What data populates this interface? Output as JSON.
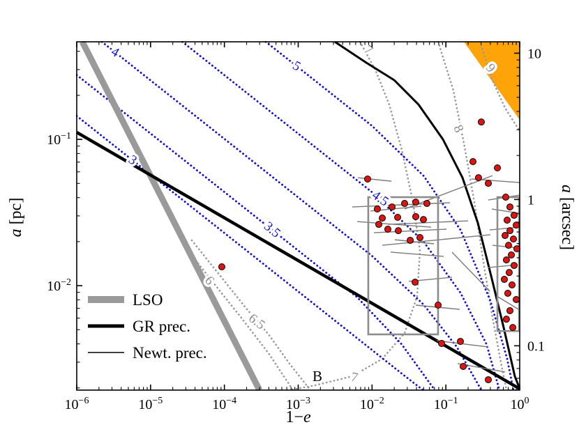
{
  "chart_data": {
    "type": "scatter",
    "xlabel_parts": {
      "prefix": "1−",
      "italic_var": "e"
    },
    "ylabel_left_parts": {
      "italic_var": "a",
      "rest": "[pc]"
    },
    "ylabel_right_parts": {
      "italic_var": "a",
      "rest": "[arcsec]"
    },
    "axes": {
      "x_log_min": -6,
      "x_log_max": 0,
      "y_log_min": -2.714,
      "y_log_max": -0.333,
      "arcsec_scale_pc": 0.0388,
      "x_major_ticks": [
        {
          "log": -6,
          "exp": "−6"
        },
        {
          "log": -5,
          "exp": "−5"
        },
        {
          "log": -4,
          "exp": "−4"
        },
        {
          "log": -3,
          "exp": "−3"
        },
        {
          "log": -2,
          "exp": "−2"
        },
        {
          "log": -1,
          "exp": "−1"
        },
        {
          "log": 0,
          "exp": "0"
        }
      ],
      "y_major_ticks": [
        {
          "log": -1,
          "exp": "−1"
        },
        {
          "log": -2,
          "exp": "−2"
        }
      ],
      "right_ticks": [
        {
          "label": "10",
          "log": -0.411
        },
        {
          "label": "1",
          "log": -1.411
        },
        {
          "label": "0.1",
          "log": -2.411
        }
      ]
    },
    "colors": {
      "blue": "#1212cf",
      "gray_contour": "#999999",
      "gray_label": "#8a8a8a",
      "lso": "#9a9a9a",
      "gr": "#000000",
      "track": "#7a7a7a",
      "point_fill": "#dd1510",
      "point_edge": "#000000",
      "box": "#8c8c8c",
      "orange": "#ffa408"
    },
    "contours_gr": [
      {
        "labels": [
          {
            "text": "3",
            "u": -5.244,
            "v": -1.143,
            "rot": 35
          }
        ],
        "points": [
          [
            -6,
            -0.84
          ],
          [
            -5,
            -1.24
          ],
          [
            -4,
            -1.64
          ],
          [
            -3,
            -2.04
          ],
          [
            -2.2,
            -2.36
          ],
          [
            -1.6,
            -2.6
          ],
          [
            -1.31,
            -2.714
          ]
        ]
      },
      {
        "labels": [
          {
            "text": "3.5",
            "u": -3.354,
            "v": -1.619,
            "rot": 40
          }
        ],
        "points": [
          [
            -6,
            -0.56
          ],
          [
            -5,
            -0.96
          ],
          [
            -4,
            -1.36
          ],
          [
            -3,
            -1.76
          ],
          [
            -2.2,
            -2.08
          ],
          [
            -1.6,
            -2.4
          ],
          [
            -1.15,
            -2.714
          ]
        ]
      },
      {
        "labels": [
          {
            "text": "4",
            "u": -5.48,
            "v": -0.405,
            "rot": 30
          }
        ],
        "points": [
          [
            -5.66,
            -0.333
          ],
          [
            -5,
            -0.597
          ],
          [
            -4,
            -0.997
          ],
          [
            -3,
            -1.397
          ],
          [
            -2,
            -1.797
          ],
          [
            -1.3,
            -2.13
          ],
          [
            -0.85,
            -2.42
          ],
          [
            -0.52,
            -2.714
          ]
        ]
      },
      {
        "labels": [
          {
            "text": "4.5",
            "u": -1.89,
            "v": -1.405,
            "rot": 35
          }
        ],
        "points": [
          [
            -4.57,
            -0.333
          ],
          [
            -4,
            -0.561
          ],
          [
            -3,
            -0.961
          ],
          [
            -2,
            -1.361
          ],
          [
            -1.3,
            -1.7
          ],
          [
            -0.8,
            -2.05
          ],
          [
            -0.45,
            -2.4
          ],
          [
            -0.275,
            -2.714
          ]
        ]
      },
      {
        "labels": [
          {
            "text": "5",
            "u": -3.023,
            "v": -0.5,
            "rot": 30
          }
        ],
        "points": [
          [
            -3.44,
            -0.333
          ],
          [
            -3,
            -0.508
          ],
          [
            -2,
            -0.908
          ],
          [
            -1.3,
            -1.25
          ],
          [
            -0.8,
            -1.62
          ],
          [
            -0.4,
            -2.1
          ],
          [
            -0.17,
            -2.5
          ],
          [
            -0.085,
            -2.714
          ]
        ]
      }
    ],
    "contours_newt": [
      {
        "labels": [
          {
            "text": "6",
            "u": -4.205,
            "v": -1.966,
            "rot": 48
          }
        ],
        "points": [
          [
            -4.847,
            -1.419
          ],
          [
            -4.488,
            -1.762
          ],
          [
            -4.157,
            -1.976
          ],
          [
            -3.78,
            -2.214
          ],
          [
            -3.402,
            -2.462
          ],
          [
            -3.071,
            -2.714
          ]
        ]
      },
      {
        "labels": [
          {
            "text": "6.5",
            "u": -3.562,
            "v": -2.247,
            "rot": 38
          }
        ],
        "points": [
          [
            -4.441,
            -1.69
          ],
          [
            -3.685,
            -2.167
          ],
          [
            -3.402,
            -2.333
          ],
          [
            -3.118,
            -2.533
          ],
          [
            -2.835,
            -2.714
          ]
        ]
      },
      {
        "labels": [
          {
            "text": "7",
            "u": -2.05,
            "v": -0.39,
            "rot": 38
          },
          {
            "text": "7",
            "u": -2.239,
            "v": -2.628,
            "rot": 12
          }
        ],
        "points": [
          [
            -2.164,
            -0.333
          ],
          [
            -1.956,
            -0.524
          ],
          [
            -1.767,
            -0.762
          ],
          [
            -1.597,
            -1.071
          ],
          [
            -1.446,
            -1.429
          ],
          [
            -1.351,
            -1.762
          ],
          [
            -1.389,
            -2.071
          ],
          [
            -1.559,
            -2.324
          ],
          [
            -1.861,
            -2.5
          ],
          [
            -2.268,
            -2.619
          ],
          [
            -2.769,
            -2.681
          ],
          [
            -3.118,
            -2.714
          ]
        ]
      },
      {
        "labels": [
          {
            "text": "8",
            "u": -0.832,
            "v": -0.928,
            "rot": 65
          }
        ],
        "points": [
          [
            -1.105,
            -0.333
          ],
          [
            -0.898,
            -0.667
          ],
          [
            -0.747,
            -1.048
          ],
          [
            -0.614,
            -1.429
          ],
          [
            -0.501,
            -1.81
          ],
          [
            -0.378,
            -2.19
          ],
          [
            -0.255,
            -2.524
          ],
          [
            -0.18,
            -2.714
          ]
        ]
      },
      {
        "labels": [
          {
            "text": "9",
            "u": -0.397,
            "v": -0.514,
            "rot": 50
          }
        ],
        "points": [
          [
            -0.539,
            -0.333
          ],
          [
            -0.369,
            -0.595
          ],
          [
            -0.198,
            -0.786
          ],
          [
            -0.047,
            -0.905
          ],
          [
            0,
            -0.943
          ]
        ]
      }
    ],
    "lso_line": {
      "label": "LSO",
      "points": [
        [
          -5.924,
          -0.333
        ],
        [
          -3.524,
          -2.714
        ]
      ]
    },
    "gr_line": {
      "label": "GR prec.",
      "points": [
        [
          -6,
          -0.952
        ],
        [
          0,
          -2.705
        ]
      ]
    },
    "black_curve": {
      "points": [
        [
          -2.504,
          -0.333
        ],
        [
          -2.078,
          -0.476
        ],
        [
          -1.7,
          -0.595
        ],
        [
          -1.37,
          -0.762
        ],
        [
          -1.039,
          -1.0
        ],
        [
          -0.775,
          -1.262
        ],
        [
          -0.567,
          -1.571
        ],
        [
          -0.378,
          -1.952
        ],
        [
          -0.217,
          -2.286
        ],
        [
          -0.066,
          -2.619
        ],
        [
          0,
          -2.705
        ]
      ]
    },
    "orange_region": {
      "points": [
        [
          -0.756,
          -0.333
        ],
        [
          0,
          -0.333
        ],
        [
          0,
          -0.867
        ]
      ]
    },
    "boxes": [
      {
        "u0": -2.051,
        "v0": -1.395,
        "u1": -1.106,
        "v1": -2.333
      },
      {
        "u0": -0.302,
        "v0": -1.395,
        "u1": -0.009,
        "v1": -2.31
      }
    ],
    "stars": [
      [
        -4.035,
        -1.871
      ],
      [
        -2.06,
        -1.271
      ],
      [
        -1.928,
        -1.476
      ],
      [
        -1.861,
        -1.538
      ],
      [
        -1.786,
        -1.614
      ],
      [
        -1.909,
        -1.581
      ],
      [
        -1.729,
        -1.462
      ],
      [
        -1.644,
        -1.624
      ],
      [
        -1.559,
        -1.438
      ],
      [
        -1.483,
        -1.69
      ],
      [
        -1.408,
        -1.429
      ],
      [
        -1.351,
        -1.671
      ],
      [
        -1.304,
        -1.548
      ],
      [
        -1.257,
        -1.438
      ],
      [
        -1.408,
        -1.528
      ],
      [
        -1.653,
        -1.533
      ],
      [
        -1.417,
        -1.976
      ],
      [
        -1.105,
        -2.133
      ],
      [
        -1.058,
        -2.395
      ],
      [
        -0.765,
        -2.552
      ],
      [
        -0.52,
        -0.881
      ],
      [
        -0.633,
        -1.152
      ],
      [
        -0.425,
        -1.3
      ],
      [
        -0.558,
        -1.262
      ],
      [
        -0.302,
        -1.195
      ],
      [
        -0.189,
        -1.395
      ],
      [
        -0.132,
        -1.462
      ],
      [
        -0.076,
        -1.519
      ],
      [
        -0.17,
        -1.552
      ],
      [
        -0.047,
        -1.586
      ],
      [
        -0.132,
        -1.624
      ],
      [
        -0.198,
        -1.657
      ],
      [
        -0.085,
        -1.681
      ],
      [
        -0.151,
        -1.724
      ],
      [
        -0.038,
        -1.748
      ],
      [
        -0.113,
        -1.79
      ],
      [
        -0.18,
        -1.824
      ],
      [
        -0.076,
        -1.862
      ],
      [
        -0.142,
        -1.91
      ],
      [
        -0.208,
        -1.957
      ],
      [
        -0.104,
        -1.995
      ],
      [
        -0.161,
        -2.052
      ],
      [
        -0.047,
        -2.095
      ],
      [
        -0.132,
        -2.171
      ],
      [
        -0.18,
        -2.229
      ],
      [
        -0.094,
        -2.286
      ],
      [
        -0.425,
        -2.643
      ],
      [
        -0.803,
        -2.381
      ]
    ],
    "tracks": [
      [
        [
          -2.268,
          -1.462
        ],
        [
          -0.945,
          -1.433
        ]
      ],
      [
        [
          -2.202,
          -1.562
        ],
        [
          -1.2,
          -1.6
        ]
      ],
      [
        [
          -2.022,
          -1.49
        ],
        [
          -1.332,
          -1.457
        ]
      ],
      [
        [
          -1.975,
          -1.638
        ],
        [
          -0.992,
          -1.614
        ]
      ],
      [
        [
          -1.861,
          -1.724
        ],
        [
          -0.397,
          -1.652
        ]
      ],
      [
        [
          -1.786,
          -1.581
        ],
        [
          -0.699,
          -1.557
        ]
      ],
      [
        [
          -1.691,
          -1.686
        ],
        [
          -1.162,
          -1.714
        ]
      ],
      [
        [
          -1.559,
          -1.476
        ],
        [
          -0.369,
          -1.248
        ]
      ],
      [
        [
          -1.748,
          -1.771
        ],
        [
          -1.03,
          -1.8
        ]
      ],
      [
        [
          -1.502,
          -1.971
        ],
        [
          -0.917,
          -1.943
        ]
      ],
      [
        [
          -1.408,
          -2.133
        ],
        [
          -0.813,
          -2.162
        ]
      ],
      [
        [
          -1.124,
          -2.376
        ],
        [
          -0.425,
          -2.419
        ]
      ],
      [
        [
          -0.841,
          -2.533
        ],
        [
          -0.198,
          -2.59
        ]
      ],
      [
        [
          -0.652,
          -1.271
        ],
        [
          0,
          -1.295
        ]
      ],
      [
        [
          -0.425,
          -1.414
        ],
        [
          0,
          -1.381
        ]
      ],
      [
        [
          -0.378,
          -1.476
        ],
        [
          -0.009,
          -1.505
        ]
      ],
      [
        [
          -0.406,
          -1.619
        ],
        [
          -0.009,
          -1.6
        ]
      ],
      [
        [
          -0.369,
          -1.724
        ],
        [
          -0.009,
          -1.743
        ]
      ],
      [
        [
          -0.425,
          -1.876
        ],
        [
          -0.028,
          -1.857
        ]
      ],
      [
        [
          -0.917,
          -1.771
        ],
        [
          -0.406,
          -2.038
        ]
      ],
      [
        [
          -2.192,
          -1.262
        ],
        [
          -1.738,
          -1.286
        ]
      ],
      [
        [
          -0.311,
          -2.071
        ],
        [
          0,
          -2.167
        ]
      ]
    ],
    "annotations": [
      {
        "text": "B",
        "u": -2.74,
        "v": -2.619
      }
    ],
    "legend": {
      "items": [
        {
          "label": "LSO",
          "style": "lso"
        },
        {
          "label": "GR prec.",
          "style": "gr"
        },
        {
          "label": "Newt. prec.",
          "style": "newt"
        }
      ]
    }
  }
}
